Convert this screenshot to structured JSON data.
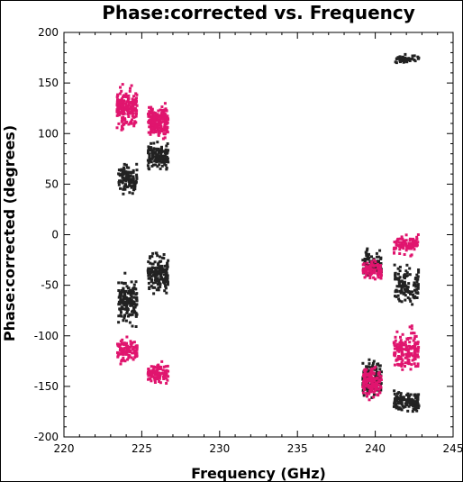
{
  "chart_data": {
    "type": "scatter",
    "title": "Phase:corrected vs. Frequency",
    "xlabel": "Frequency (GHz)",
    "ylabel": "Phase:corrected (degrees)",
    "xlim": [
      220,
      245
    ],
    "ylim": [
      -200,
      200
    ],
    "x_ticks": [
      "220",
      "225",
      "230",
      "235",
      "240",
      "245"
    ],
    "y_ticks": [
      "200",
      "150",
      "100",
      "50",
      "0",
      "-50",
      "-100",
      "-150",
      "-200"
    ],
    "grid": false,
    "legend": "none",
    "series": [
      {
        "color": "#222222",
        "clusters": [
          {
            "x_range": [
              223.5,
              224.7
            ],
            "y_center": 55,
            "y_spread": 22,
            "count": 110
          },
          {
            "x_range": [
              225.4,
              226.7
            ],
            "y_center": 78,
            "y_spread": 20,
            "count": 130
          },
          {
            "x_range": [
              223.5,
              224.7
            ],
            "y_center": -65,
            "y_spread": 35,
            "count": 170
          },
          {
            "x_range": [
              225.4,
              226.7
            ],
            "y_center": -40,
            "y_spread": 30,
            "count": 170
          },
          {
            "x_range": [
              239.2,
              240.4
            ],
            "y_center": -28,
            "y_spread": 22,
            "count": 90
          },
          {
            "x_range": [
              241.2,
              242.8
            ],
            "y_center": -50,
            "y_spread": 28,
            "count": 110
          },
          {
            "x_range": [
              239.2,
              240.4
            ],
            "y_center": -142,
            "y_spread": 28,
            "count": 150
          },
          {
            "x_range": [
              241.2,
              242.8
            ],
            "y_center": -165,
            "y_spread": 16,
            "count": 150
          },
          {
            "x_range": [
              241.2,
              242.8
            ],
            "y_center": 174,
            "y_spread": 7,
            "count": 45
          }
        ]
      },
      {
        "color": "#e0156e",
        "clusters": [
          {
            "x_range": [
              223.4,
              224.7
            ],
            "y_center": 125,
            "y_spread": 28,
            "count": 200
          },
          {
            "x_range": [
              225.4,
              226.7
            ],
            "y_center": 112,
            "y_spread": 25,
            "count": 200
          },
          {
            "x_range": [
              223.4,
              224.7
            ],
            "y_center": -115,
            "y_spread": 17,
            "count": 110
          },
          {
            "x_range": [
              225.4,
              226.7
            ],
            "y_center": -137,
            "y_spread": 14,
            "count": 110
          },
          {
            "x_range": [
              239.2,
              240.4
            ],
            "y_center": -35,
            "y_spread": 17,
            "count": 80
          },
          {
            "x_range": [
              241.2,
              242.8
            ],
            "y_center": -10,
            "y_spread": 15,
            "count": 90
          },
          {
            "x_range": [
              239.2,
              240.4
            ],
            "y_center": -145,
            "y_spread": 24,
            "count": 140
          },
          {
            "x_range": [
              241.2,
              242.8
            ],
            "y_center": -115,
            "y_spread": 30,
            "count": 170
          }
        ]
      }
    ]
  }
}
